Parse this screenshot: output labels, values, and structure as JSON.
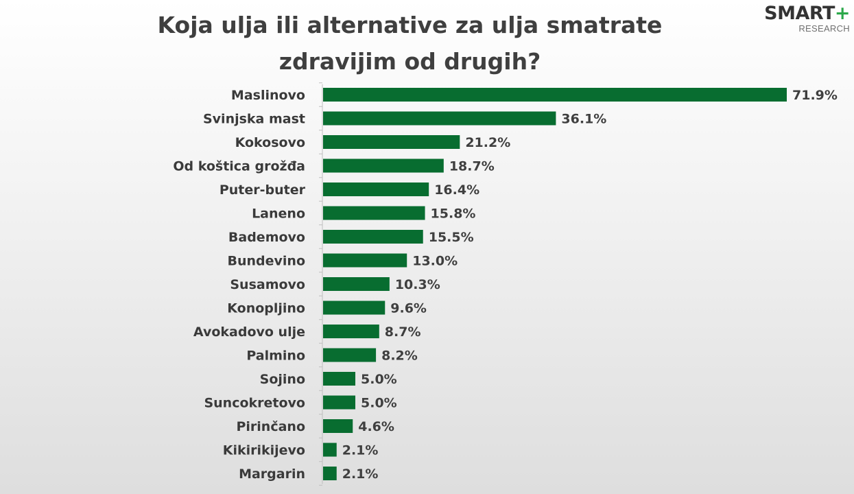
{
  "header": {
    "title": "Koja ulja ili alternative za ulja smatrate zdravijim od drugih?"
  },
  "logo": {
    "main": "SMART",
    "plus": "+",
    "sub": "RESEARCH"
  },
  "colors": {
    "bar": "#086d30",
    "label": "#3a3a3a",
    "value": "#3f3f3f",
    "axis": "#bfbfbf",
    "logo_accent": "#2ba84a"
  },
  "chart_data": {
    "type": "bar",
    "orientation": "horizontal",
    "title": "Koja ulja ili alternative za ulja smatrate zdravijim od drugih?",
    "xlabel": "",
    "ylabel": "",
    "xlim": [
      0,
      71.9
    ],
    "grid": false,
    "categories": [
      "Maslinovo",
      "Svinjska mast",
      "Kokosovo",
      "Od koštica grožđa",
      "Puter-buter",
      "Laneno",
      "Bademovo",
      "Bundevino",
      "Susamovo",
      "Konopljino",
      "Avokadovo ulje",
      "Palmino",
      "Sojino",
      "Suncokretovo",
      "Pirinčano",
      "Kikirikijevo",
      "Margarin"
    ],
    "values": [
      71.9,
      36.1,
      21.2,
      18.7,
      16.4,
      15.8,
      15.5,
      13.0,
      10.3,
      9.6,
      8.7,
      8.2,
      5.0,
      5.0,
      4.6,
      2.1,
      2.1
    ],
    "value_labels": [
      "71.9%",
      "36.1%",
      "21.2%",
      "18.7%",
      "16.4%",
      "15.8%",
      "15.5%",
      "13.0%",
      "10.3%",
      "9.6%",
      "8.7%",
      "8.2%",
      "5.0%",
      "5.0%",
      "4.6%",
      "2.1%",
      "2.1%"
    ]
  }
}
